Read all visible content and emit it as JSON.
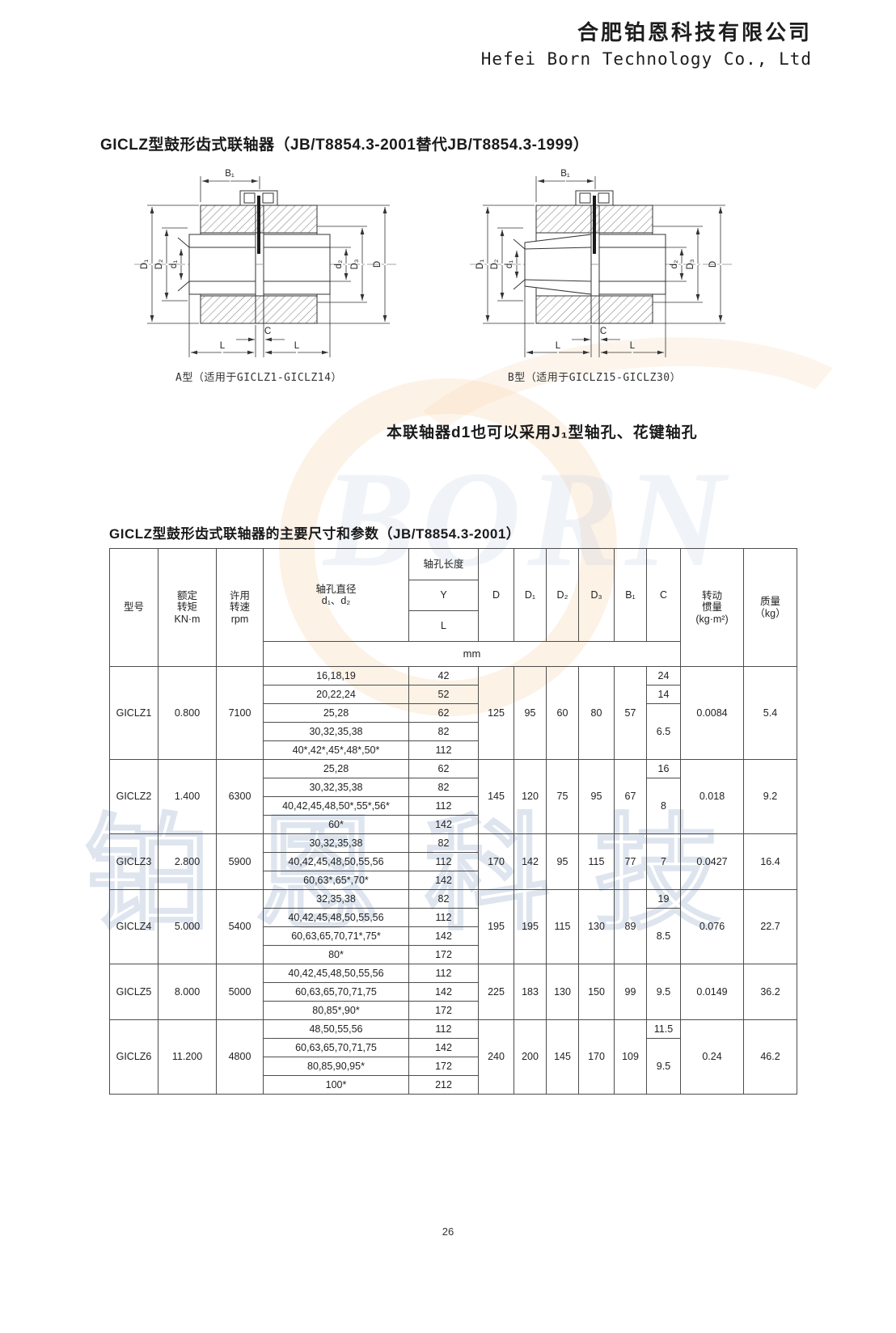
{
  "company": {
    "name_cn": "合肥铂恩科技有限公司",
    "name_en": "Hefei Born Technology Co., Ltd"
  },
  "page": {
    "title": "GICLZ型鼓形齿式联轴器（JB/T8854.3-2001替代JB/T8854.3-1999）",
    "number": "26"
  },
  "drawings": {
    "labels": {
      "B1": "B₁",
      "D": "D",
      "D1": "D₁",
      "D2": "D₂",
      "D3": "D₃",
      "d1": "d₁",
      "d2": "d₂",
      "C": "C",
      "L": "L"
    },
    "caption_a": "A型（适用于GICLZ1-GICLZ14）",
    "caption_b": "B型（适用于GICLZ15-GICLZ30）",
    "note": "本联轴器d1也可以采用J₁型轴孔、花键轴孔"
  },
  "watermark": {
    "logo_text": "BORN",
    "brand_text": "铂恩科技"
  },
  "table": {
    "title": "GICLZ型鼓形齿式联轴器的主要尺寸和参数（JB/T8854.3-2001）",
    "header": {
      "model": "型号",
      "torque": "额定\n转矩\nKN·m",
      "speed": "许用\n转速\nrpm",
      "bore_diameter": "轴孔直径\nd₁、d₂",
      "bore_length": "轴孔长度",
      "y_label": "Y",
      "l_label": "L",
      "dims": [
        "D",
        "D₁",
        "D₂",
        "D₃",
        "B₁",
        "C"
      ],
      "inertia": "转动\n惯量\n(kg·m²)",
      "mass": "质量\n（kg）",
      "unit": "mm"
    },
    "groups": [
      {
        "model": "GICLZ1",
        "torque": "0.800",
        "speed": "7100",
        "rows": [
          {
            "bores": "16,18,19",
            "length": "42"
          },
          {
            "bores": "20,22,24",
            "length": "52"
          },
          {
            "bores": "25,28",
            "length": "62"
          },
          {
            "bores": "30,32,35,38",
            "length": "82"
          },
          {
            "bores": "40*,42*,45*,48*,50*",
            "length": "112"
          }
        ],
        "D": "125",
        "D1": "95",
        "D2": "60",
        "D3": "80",
        "B1": "57",
        "C": [
          {
            "value": "24",
            "span": 1
          },
          {
            "value": "14",
            "span": 1
          },
          {
            "value": "6.5",
            "span": 3
          }
        ],
        "inertia": "0.0084",
        "mass": "5.4"
      },
      {
        "model": "GICLZ2",
        "torque": "1.400",
        "speed": "6300",
        "rows": [
          {
            "bores": "25,28",
            "length": "62"
          },
          {
            "bores": "30,32,35,38",
            "length": "82"
          },
          {
            "bores": "40,42,45,48,50*,55*,56*",
            "length": "112"
          },
          {
            "bores": "60*",
            "length": "142"
          }
        ],
        "D": "145",
        "D1": "120",
        "D2": "75",
        "D3": "95",
        "B1": "67",
        "C": [
          {
            "value": "16",
            "span": 1
          },
          {
            "value": "8",
            "span": 3
          }
        ],
        "inertia": "0.018",
        "mass": "9.2"
      },
      {
        "model": "GICLZ3",
        "torque": "2.800",
        "speed": "5900",
        "rows": [
          {
            "bores": "30,32,35,38",
            "length": "82"
          },
          {
            "bores": "40,42,45,48,50,55,56",
            "length": "112"
          },
          {
            "bores": "60,63*,65*,70*",
            "length": "142"
          }
        ],
        "D": "170",
        "D1": "142",
        "D2": "95",
        "D3": "115",
        "B1": "77",
        "C": [
          {
            "value": "7",
            "span": 3
          }
        ],
        "inertia": "0.0427",
        "mass": "16.4"
      },
      {
        "model": "GICLZ4",
        "torque": "5.000",
        "speed": "5400",
        "rows": [
          {
            "bores": "32,35,38",
            "length": "82"
          },
          {
            "bores": "40,42,45,48,50,55,56",
            "length": "112"
          },
          {
            "bores": "60,63,65,70,71*,75*",
            "length": "142"
          },
          {
            "bores": "80*",
            "length": "172"
          }
        ],
        "D": "195",
        "D1": "195",
        "D2": "115",
        "D3": "130",
        "B1": "89",
        "C": [
          {
            "value": "19",
            "span": 1
          },
          {
            "value": "8.5",
            "span": 3
          }
        ],
        "inertia": "0.076",
        "mass": "22.7"
      },
      {
        "model": "GICLZ5",
        "torque": "8.000",
        "speed": "5000",
        "rows": [
          {
            "bores": "40,42,45,48,50,55,56",
            "length": "112"
          },
          {
            "bores": "60,63,65,70,71,75",
            "length": "142"
          },
          {
            "bores": "80,85*,90*",
            "length": "172"
          }
        ],
        "D": "225",
        "D1": "183",
        "D2": "130",
        "D3": "150",
        "B1": "99",
        "C": [
          {
            "value": "9.5",
            "span": 3
          }
        ],
        "inertia": "0.0149",
        "mass": "36.2"
      },
      {
        "model": "GICLZ6",
        "torque": "11.200",
        "speed": "4800",
        "rows": [
          {
            "bores": "48,50,55,56",
            "length": "112"
          },
          {
            "bores": "60,63,65,70,71,75",
            "length": "142"
          },
          {
            "bores": "80,85,90,95*",
            "length": "172"
          },
          {
            "bores": "100*",
            "length": "212"
          }
        ],
        "D": "240",
        "D1": "200",
        "D2": "145",
        "D3": "170",
        "B1": "109",
        "C": [
          {
            "value": "11.5",
            "span": 1
          },
          {
            "value": "9.5",
            "span": 3
          }
        ],
        "inertia": "0.24",
        "mass": "46.2"
      }
    ]
  }
}
